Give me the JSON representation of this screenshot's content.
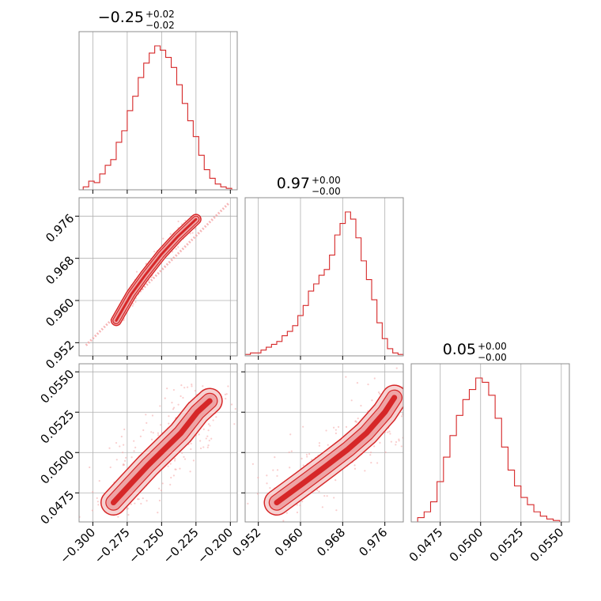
{
  "chart_data": {
    "type": "corner",
    "color": "#d62728",
    "grid": true,
    "parameters": [
      {
        "title_value": "−0.25",
        "title_plus": "+0.02",
        "title_minus": "−0.02",
        "range": [
          -0.31,
          -0.195
        ],
        "ticks": [
          -0.3,
          -0.275,
          -0.25,
          -0.225,
          -0.2
        ],
        "tick_labels": [
          "−0.300",
          "−0.275",
          "−0.250",
          "−0.225",
          "−0.200"
        ],
        "hist_x": [
          -0.31,
          -0.307,
          -0.303,
          -0.299,
          -0.295,
          -0.291,
          -0.287,
          -0.283,
          -0.279,
          -0.275,
          -0.271,
          -0.267,
          -0.263,
          -0.259,
          -0.255,
          -0.251,
          -0.247,
          -0.243,
          -0.239,
          -0.235,
          -0.231,
          -0.227,
          -0.223,
          -0.219,
          -0.215,
          -0.211,
          -0.207,
          -0.203,
          -0.199
        ],
        "hist_y": [
          0.0,
          0.02,
          0.06,
          0.05,
          0.11,
          0.17,
          0.21,
          0.33,
          0.41,
          0.55,
          0.65,
          0.78,
          0.88,
          0.95,
          1.0,
          0.97,
          0.92,
          0.85,
          0.73,
          0.6,
          0.48,
          0.37,
          0.24,
          0.14,
          0.08,
          0.04,
          0.02,
          0.01,
          0.0
        ]
      },
      {
        "title_value": "0.97",
        "title_plus": "+0.00",
        "title_minus": "−0.00",
        "range": [
          0.9495,
          0.9795
        ],
        "ticks": [
          0.952,
          0.96,
          0.968,
          0.976
        ],
        "tick_labels": [
          "0.952",
          "0.960",
          "0.968",
          "0.976"
        ],
        "hist_x": [
          0.9495,
          0.9505,
          0.9515,
          0.9525,
          0.9535,
          0.9545,
          0.9555,
          0.9565,
          0.9575,
          0.9585,
          0.9595,
          0.9605,
          0.9615,
          0.9625,
          0.9635,
          0.9645,
          0.9655,
          0.9665,
          0.9675,
          0.9685,
          0.9695,
          0.9705,
          0.9715,
          0.9725,
          0.9735,
          0.9745,
          0.9755,
          0.9765,
          0.9775,
          0.9785,
          0.9795
        ],
        "hist_y": [
          0.01,
          0.02,
          0.02,
          0.04,
          0.06,
          0.08,
          0.1,
          0.14,
          0.17,
          0.21,
          0.28,
          0.35,
          0.45,
          0.5,
          0.56,
          0.6,
          0.7,
          0.84,
          0.92,
          1.0,
          0.95,
          0.82,
          0.66,
          0.53,
          0.39,
          0.23,
          0.12,
          0.05,
          0.02,
          0.01,
          0.0
        ]
      },
      {
        "title_value": "0.05",
        "title_plus": "+0.00",
        "title_minus": "−0.00",
        "range": [
          0.0457,
          0.0555
        ],
        "ticks": [
          0.0475,
          0.05,
          0.0525,
          0.055
        ],
        "tick_labels": [
          "0.0475",
          "0.0500",
          "0.0525",
          "0.0550"
        ],
        "hist_x": [
          0.0457,
          0.0461,
          0.0465,
          0.0469,
          0.0473,
          0.0477,
          0.0481,
          0.0485,
          0.0489,
          0.0493,
          0.0497,
          0.0501,
          0.0505,
          0.0509,
          0.0513,
          0.0517,
          0.0521,
          0.0525,
          0.0529,
          0.0533,
          0.0537,
          0.0541,
          0.0545,
          0.0549,
          0.0553
        ],
        "hist_y": [
          0.0,
          0.03,
          0.07,
          0.14,
          0.28,
          0.45,
          0.6,
          0.74,
          0.85,
          0.92,
          1.0,
          0.97,
          0.88,
          0.72,
          0.52,
          0.36,
          0.25,
          0.17,
          0.12,
          0.07,
          0.04,
          0.02,
          0.01,
          0.0,
          0.0
        ]
      }
    ],
    "pairs": [
      {
        "row": 1,
        "col": 0,
        "x_param": 0,
        "y_param": 1,
        "scatter_line": [
          [
            -0.305,
            0.9515
          ],
          [
            -0.201,
            0.9785
          ]
        ],
        "dense": [
          [
            -0.283,
            0.9562
          ],
          [
            -0.272,
            0.9612
          ],
          [
            -0.262,
            0.9648
          ],
          [
            -0.25,
            0.9688
          ],
          [
            -0.238,
            0.9722
          ],
          [
            -0.225,
            0.9754
          ]
        ]
      },
      {
        "row": 2,
        "col": 0,
        "x_param": 0,
        "y_param": 2,
        "dense": [
          [
            -0.285,
            0.0469
          ],
          [
            -0.272,
            0.0481
          ],
          [
            -0.26,
            0.0492
          ],
          [
            -0.248,
            0.0502
          ],
          [
            -0.236,
            0.0512
          ],
          [
            -0.224,
            0.0525
          ],
          [
            -0.215,
            0.0532
          ]
        ]
      },
      {
        "row": 2,
        "col": 1,
        "x_param": 1,
        "y_param": 2,
        "dense": [
          [
            0.9555,
            0.0469
          ],
          [
            0.9605,
            0.0481
          ],
          [
            0.965,
            0.0492
          ],
          [
            0.969,
            0.0502
          ],
          [
            0.9725,
            0.0512
          ],
          [
            0.976,
            0.0525
          ],
          [
            0.9778,
            0.0534
          ]
        ]
      }
    ]
  }
}
